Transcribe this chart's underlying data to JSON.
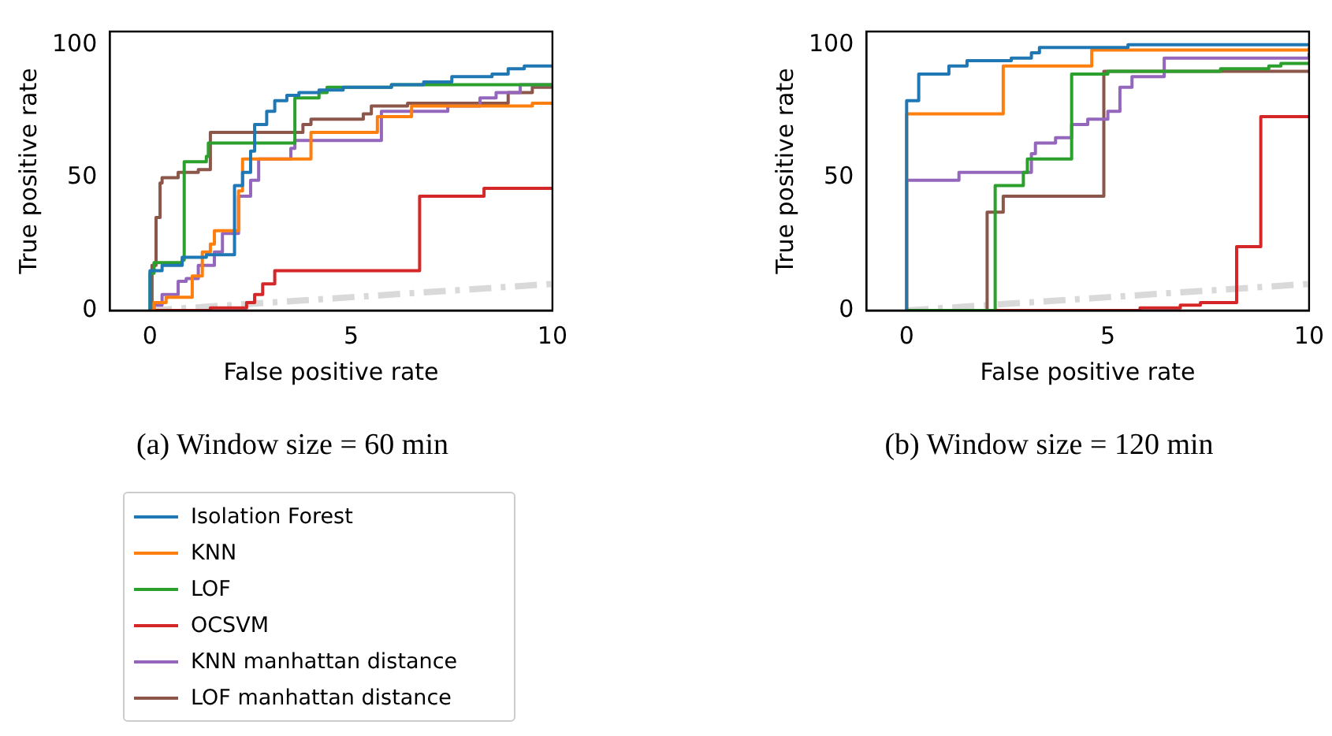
{
  "chart_data": [
    {
      "type": "step",
      "xlabel": "False positive rate",
      "ylabel": "True positive rate",
      "annotations": [
        "(a) Window size = 60 min"
      ],
      "xlim": [
        -1,
        10
      ],
      "ylim": [
        0,
        105
      ],
      "xticks": [
        0,
        5,
        10
      ],
      "yticks": [
        0,
        50,
        100
      ],
      "legend": "bottom",
      "series": [
        {
          "name": "Isolation Forest",
          "color": "#1f77b4",
          "x": [
            0,
            0,
            0.3,
            0.8,
            1.4,
            2.1,
            2.3,
            2.5,
            2.6,
            2.9,
            3.1,
            3.4,
            3.7,
            4.2,
            4.8,
            6,
            6.8,
            7.5,
            8.5,
            8.9,
            9.3,
            10
          ],
          "values": [
            0,
            15,
            17,
            20,
            21,
            47,
            52,
            60,
            70,
            75,
            79,
            81,
            82,
            83,
            84,
            85,
            86,
            88,
            89,
            91,
            92,
            92
          ]
        },
        {
          "name": "KNN",
          "color": "#ff7f0e",
          "x": [
            0,
            0.1,
            0.4,
            1.05,
            1.3,
            1.5,
            1.6,
            2.2,
            2.3,
            4.0,
            5.65,
            6.5,
            9.5,
            10
          ],
          "values": [
            0,
            3,
            5,
            13,
            22,
            25,
            30,
            45,
            57,
            67,
            73,
            77,
            78,
            78
          ]
        },
        {
          "name": "LOF",
          "color": "#2ca02c",
          "x": [
            0,
            0,
            0.1,
            0.8,
            0.85,
            1.4,
            1.45,
            3.6,
            3.6,
            4.2,
            4.4,
            6,
            10
          ],
          "values": [
            0,
            14,
            18,
            19,
            56,
            58,
            63,
            63,
            80,
            82,
            84,
            85,
            85
          ]
        },
        {
          "name": "OCSVM",
          "color": "#d62728",
          "x": [
            0,
            1.5,
            2.4,
            2.6,
            2.8,
            3.1,
            6.7,
            6.7,
            8.3,
            8.3,
            10
          ],
          "values": [
            0,
            1,
            3,
            6,
            10,
            15,
            15,
            43,
            43,
            46,
            46
          ]
        },
        {
          "name": "KNN manhattan distance",
          "color": "#9467bd",
          "x": [
            0,
            0.1,
            0.3,
            0.7,
            0.9,
            1.2,
            1.6,
            1.8,
            2.2,
            2.5,
            2.7,
            3.5,
            3.6,
            5.75,
            7.4,
            8.2,
            8.6,
            9.2,
            10
          ],
          "values": [
            0,
            2,
            6,
            11,
            12,
            17,
            22,
            29,
            43,
            49,
            57,
            61,
            64,
            75,
            77,
            80,
            82,
            85,
            85
          ]
        },
        {
          "name": "LOF manhattan distance",
          "color": "#8c564b",
          "x": [
            0,
            0.05,
            0.15,
            0.25,
            0.3,
            0.7,
            1.2,
            1.5,
            3.6,
            3.8,
            4,
            5.3,
            5.5,
            6.4,
            8.3,
            8.9,
            9.5,
            10
          ],
          "values": [
            0,
            17,
            35,
            48,
            50,
            52,
            53,
            67,
            67,
            70,
            72,
            74,
            77,
            78,
            78,
            82,
            84,
            85
          ]
        },
        {
          "type": "line",
          "line_style": "dashed",
          "color": "#d9d9d9",
          "x": [
            0,
            10
          ],
          "values": [
            0,
            10
          ]
        }
      ]
    },
    {
      "type": "step",
      "xlabel": "False positive rate",
      "ylabel": "True positive rate",
      "annotations": [
        "(b) Window size = 120 min"
      ],
      "xlim": [
        -1,
        10
      ],
      "ylim": [
        0,
        105
      ],
      "xticks": [
        0,
        5,
        10
      ],
      "yticks": [
        0,
        50,
        100
      ],
      "series": [
        {
          "color": "#1f77b4",
          "x": [
            0,
            0,
            0.3,
            1.05,
            1.5,
            2.6,
            3.1,
            3.3,
            5.5,
            10
          ],
          "values": [
            0,
            79,
            89,
            92,
            94,
            95,
            97,
            99,
            100,
            100
          ]
        },
        {
          "color": "#ff7f0e",
          "x": [
            0,
            0,
            2.4,
            4.6,
            10
          ],
          "values": [
            0,
            74,
            92,
            98,
            99
          ]
        },
        {
          "color": "#2ca02c",
          "x": [
            0,
            2.2,
            2.2,
            2.9,
            3.0,
            4.1,
            4.1,
            5,
            7.8,
            9,
            9.3,
            10
          ],
          "values": [
            0,
            0,
            47,
            52,
            57,
            57,
            89,
            90,
            91,
            92,
            93,
            93
          ]
        },
        {
          "color": "#d62728",
          "x": [
            0,
            5.8,
            5.8,
            6.8,
            7.3,
            8.2,
            8.2,
            8.8,
            8.8,
            10
          ],
          "values": [
            0,
            0,
            1,
            2,
            3,
            3,
            24,
            24,
            73,
            73
          ]
        },
        {
          "color": "#9467bd",
          "x": [
            0,
            0,
            1.3,
            3.1,
            3.2,
            3.7,
            4.1,
            4.5,
            5,
            5.3,
            5.6,
            6.4,
            10
          ],
          "values": [
            0,
            49,
            52,
            59,
            63,
            65,
            70,
            72,
            75,
            84,
            88,
            95,
            97
          ]
        },
        {
          "color": "#8c564b",
          "x": [
            0,
            2.0,
            2.0,
            2.4,
            4.9,
            4.9,
            10
          ],
          "values": [
            0,
            0,
            37,
            43,
            43,
            90,
            90
          ]
        },
        {
          "type": "line",
          "line_style": "dashed",
          "color": "#d9d9d9",
          "x": [
            0,
            10
          ],
          "values": [
            0,
            10
          ]
        }
      ]
    }
  ]
}
